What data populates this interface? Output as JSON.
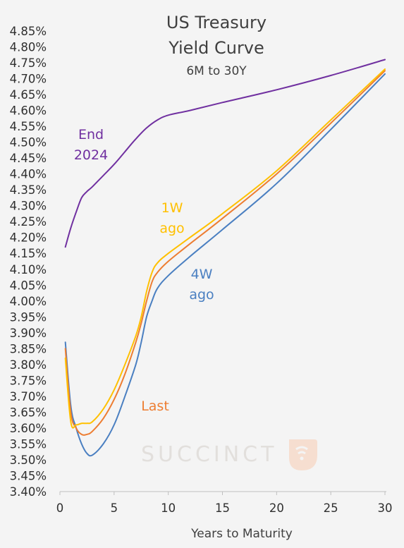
{
  "chart_data": {
    "type": "line",
    "title_lines": [
      "US Treasury",
      "Yield Curve"
    ],
    "subtitle": "6M to 30Y",
    "xlabel": "Years to Maturity",
    "ylabel": "",
    "xlim": [
      0,
      30
    ],
    "ylim": [
      3.4,
      4.85
    ],
    "x_ticks": [
      0,
      5,
      10,
      15,
      20,
      25,
      30
    ],
    "y_ticks": [
      "3.40%",
      "3.45%",
      "3.50%",
      "3.55%",
      "3.60%",
      "3.65%",
      "3.70%",
      "3.75%",
      "3.80%",
      "3.85%",
      "3.90%",
      "3.95%",
      "4.00%",
      "4.05%",
      "4.10%",
      "4.15%",
      "4.20%",
      "4.25%",
      "4.30%",
      "4.35%",
      "4.40%",
      "4.45%",
      "4.50%",
      "4.55%",
      "4.60%",
      "4.65%",
      "4.70%",
      "4.75%",
      "4.80%",
      "4.85%"
    ],
    "grid": false,
    "legend": "none",
    "series": [
      {
        "name": "End 2024",
        "label_lines": [
          "End",
          "2024"
        ],
        "color": "#7030a0",
        "x": [
          0.5,
          1,
          1.5,
          2,
          2.5,
          3,
          4,
          5,
          6,
          7,
          8,
          9,
          10,
          12,
          15,
          20,
          25,
          30
        ],
        "y": [
          4.17,
          4.23,
          4.28,
          4.325,
          4.345,
          4.36,
          4.395,
          4.43,
          4.47,
          4.51,
          4.545,
          4.57,
          4.585,
          4.6,
          4.625,
          4.665,
          4.71,
          4.76
        ]
      },
      {
        "name": "1W ago",
        "label_lines": [
          "1W",
          "ago"
        ],
        "color": "#ffc000",
        "x": [
          0.5,
          1,
          1.5,
          2,
          2.5,
          3,
          4,
          5,
          6,
          7,
          7.5,
          8,
          8.5,
          9,
          10,
          12,
          15,
          20,
          25,
          30
        ],
        "y": [
          3.82,
          3.62,
          3.61,
          3.615,
          3.615,
          3.62,
          3.66,
          3.72,
          3.8,
          3.89,
          3.95,
          4.03,
          4.09,
          4.12,
          4.15,
          4.2,
          4.275,
          4.41,
          4.57,
          4.73
        ]
      },
      {
        "name": "Last",
        "label_lines": [
          "Last"
        ],
        "color": "#ed7d31",
        "x": [
          0.5,
          1,
          1.5,
          2,
          2.5,
          3,
          4,
          5,
          6,
          7,
          7.5,
          8,
          8.5,
          9,
          10,
          12,
          15,
          20,
          25,
          30
        ],
        "y": [
          3.85,
          3.65,
          3.6,
          3.58,
          3.58,
          3.59,
          3.63,
          3.69,
          3.77,
          3.87,
          3.93,
          4.0,
          4.06,
          4.09,
          4.125,
          4.18,
          4.26,
          4.4,
          4.56,
          4.725
        ]
      },
      {
        "name": "4W ago",
        "label_lines": [
          "4W",
          "ago"
        ],
        "color": "#4a7fc1",
        "x": [
          0.5,
          1,
          1.5,
          2,
          2.5,
          3,
          4,
          5,
          6,
          7,
          7.5,
          8,
          8.5,
          9,
          10,
          12,
          15,
          20,
          25,
          30
        ],
        "y": [
          3.87,
          3.67,
          3.6,
          3.55,
          3.52,
          3.515,
          3.55,
          3.61,
          3.7,
          3.8,
          3.87,
          3.95,
          4.0,
          4.04,
          4.08,
          4.14,
          4.225,
          4.37,
          4.54,
          4.715
        ]
      }
    ],
    "watermark": "SUCCINCT"
  }
}
